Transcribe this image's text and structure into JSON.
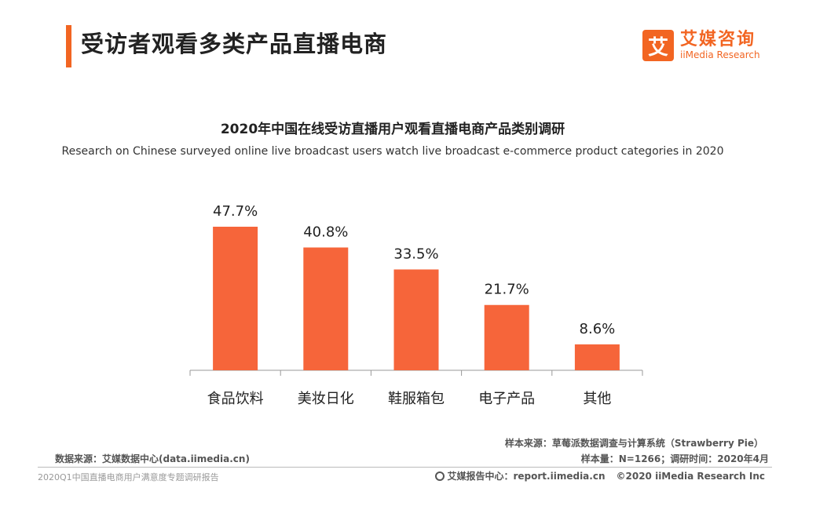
{
  "header": {
    "title": "受访者观看多类产品直播电商",
    "logo_mark": "艾",
    "logo_cn": "艾媒咨询",
    "logo_en": "iiMedia Research"
  },
  "chart_data": {
    "type": "bar",
    "title": "2020年中国在线受访直播用户观看直播电商产品类别调研",
    "subtitle": "Research on Chinese surveyed online live broadcast users watch live broadcast e-commerce product categories in 2020",
    "categories": [
      "食品饮料",
      "美妆日化",
      "鞋服箱包",
      "电子产品",
      "其他"
    ],
    "values": [
      47.7,
      40.8,
      33.5,
      21.7,
      8.6
    ],
    "value_labels": [
      "47.7%",
      "40.8%",
      "33.5%",
      "21.7%",
      "8.6%"
    ],
    "ylim": [
      0,
      50
    ],
    "xlabel": "",
    "ylabel": "",
    "grid": false,
    "bar_color": "#f6653a"
  },
  "footer": {
    "data_source": "数据来源：艾媒数据中心(data.iimedia.cn)",
    "sample_source": "样本来源：草莓派数据调查与计算系统（Strawberry Pie）",
    "sample_size": "样本量：N=1266；调研时间：2020年4月",
    "report_name": "2020Q1中国直播电商用户满意度专题调研报告",
    "report_center": "艾媒报告中心：report.iimedia.cn",
    "copyright": "©2020  iiMedia Research  Inc"
  }
}
